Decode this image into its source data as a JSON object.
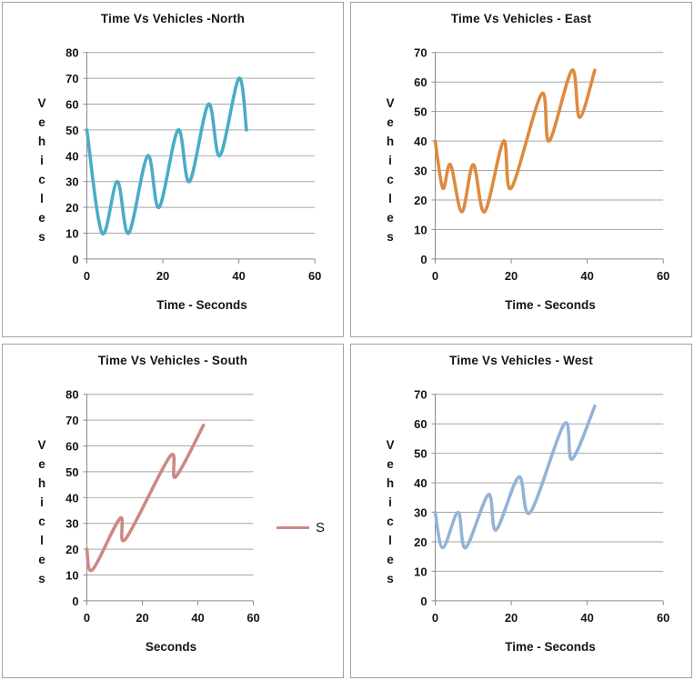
{
  "style": {
    "grid_color": "#a6a6a6",
    "axis_color": "#8c8c8c",
    "panel_border_color": "#a3a3a3",
    "text_color": "#151515"
  },
  "chart_data": [
    {
      "type": "line",
      "title": "Time Vs Vehicles -North",
      "xlabel": "Time - Seconds",
      "ylabel": "Vehicles",
      "color": "#4BACC6",
      "xlim": [
        0,
        60
      ],
      "ylim": [
        0,
        80
      ],
      "x_ticks": [
        0,
        20,
        40,
        60
      ],
      "y_ticks": [
        0,
        10,
        20,
        30,
        40,
        50,
        60,
        70,
        80
      ],
      "grid": true,
      "smooth": true,
      "legend": null,
      "points": [
        [
          0,
          50
        ],
        [
          4,
          10
        ],
        [
          8,
          30
        ],
        [
          11,
          10
        ],
        [
          16,
          40
        ],
        [
          19,
          20
        ],
        [
          24,
          50
        ],
        [
          27,
          30
        ],
        [
          32,
          60
        ],
        [
          35,
          40
        ],
        [
          40,
          70
        ],
        [
          42,
          50
        ]
      ]
    },
    {
      "type": "line",
      "title": "Time Vs Vehicles - East",
      "xlabel": "Time - Seconds",
      "ylabel": "Vehicles",
      "color": "#DE8A3F",
      "xlim": [
        0,
        60
      ],
      "ylim": [
        0,
        70
      ],
      "x_ticks": [
        0,
        20,
        40,
        60
      ],
      "y_ticks": [
        0,
        10,
        20,
        30,
        40,
        50,
        60,
        70
      ],
      "grid": true,
      "smooth": true,
      "legend": null,
      "points": [
        [
          0,
          40
        ],
        [
          2,
          24
        ],
        [
          4,
          32
        ],
        [
          7,
          16
        ],
        [
          10,
          32
        ],
        [
          13,
          16
        ],
        [
          18,
          40
        ],
        [
          20,
          24
        ],
        [
          28,
          56
        ],
        [
          30,
          40
        ],
        [
          36,
          64
        ],
        [
          38,
          48
        ],
        [
          42,
          64
        ]
      ]
    },
    {
      "type": "line",
      "title": "Time Vs Vehicles - South",
      "xlabel": "Seconds",
      "ylabel": "Vehicles",
      "color": "#CE8886",
      "xlim": [
        0,
        60
      ],
      "ylim": [
        0,
        80
      ],
      "x_ticks": [
        0,
        20,
        40,
        60
      ],
      "y_ticks": [
        0,
        10,
        20,
        30,
        40,
        50,
        60,
        70,
        80
      ],
      "grid": true,
      "smooth": true,
      "legend": {
        "label": "S"
      },
      "points": [
        [
          0,
          20
        ],
        [
          2,
          12
        ],
        [
          12,
          32
        ],
        [
          14,
          24
        ],
        [
          30,
          56
        ],
        [
          32,
          48
        ],
        [
          42,
          68
        ]
      ]
    },
    {
      "type": "line",
      "title": "Time Vs Vehicles - West",
      "xlabel": "Time - Seconds",
      "ylabel": "Vehicles",
      "color": "#95B3D7",
      "xlim": [
        0,
        60
      ],
      "ylim": [
        0,
        70
      ],
      "x_ticks": [
        0,
        20,
        40,
        60
      ],
      "y_ticks": [
        0,
        10,
        20,
        30,
        40,
        50,
        60,
        70
      ],
      "grid": true,
      "smooth": true,
      "legend": null,
      "points": [
        [
          0,
          30
        ],
        [
          2,
          18
        ],
        [
          6,
          30
        ],
        [
          8,
          18
        ],
        [
          14,
          36
        ],
        [
          16,
          24
        ],
        [
          22,
          42
        ],
        [
          25,
          30
        ],
        [
          34,
          60
        ],
        [
          36,
          48
        ],
        [
          42,
          66
        ]
      ]
    }
  ]
}
